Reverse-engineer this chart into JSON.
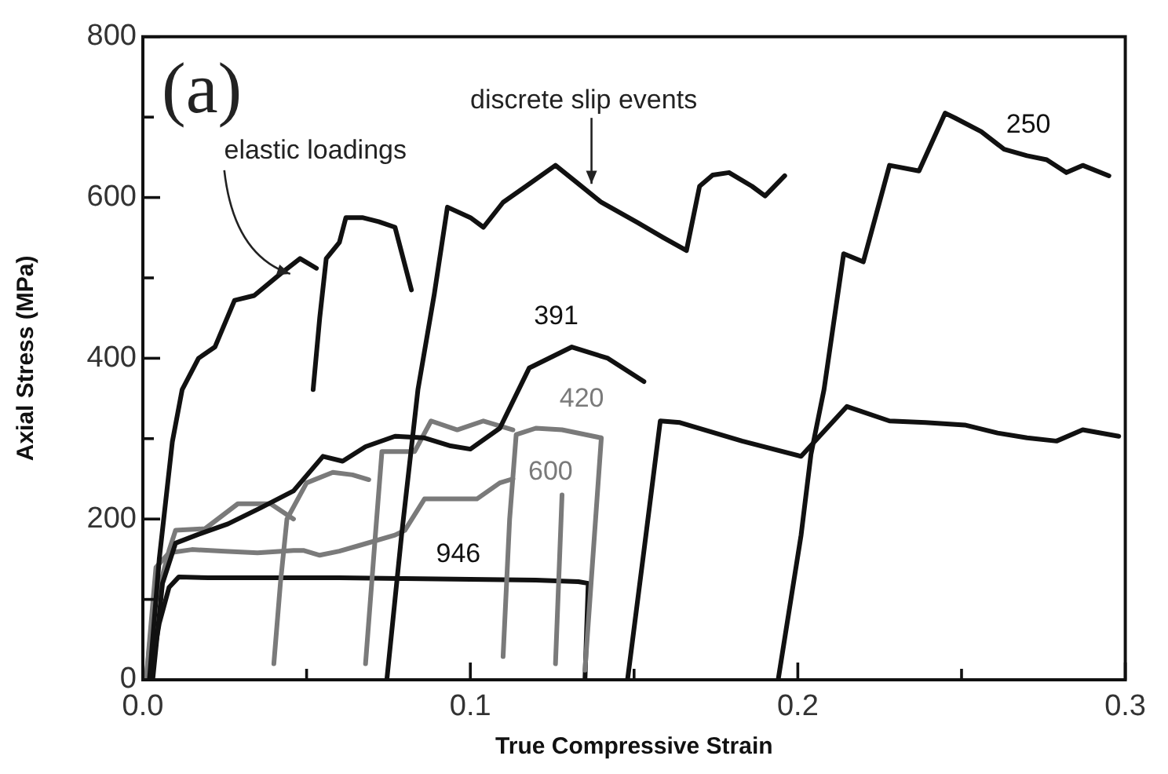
{
  "chart_data": {
    "type": "line",
    "xlabel": "True Compressive Strain",
    "ylabel": "Axial Stress (MPa)",
    "xlim": [
      0,
      0.3
    ],
    "xticks": [
      {
        "value": 0,
        "label": "0.0"
      },
      {
        "value": 0.05,
        "label": null
      },
      0.1,
      {
        "value": 0.15,
        "label": null
      },
      0.2,
      {
        "value": 0.25,
        "label": null
      },
      0.3
    ],
    "ylim": [
      0,
      800
    ],
    "yticks": [
      0,
      {
        "value": 100,
        "label": null
      },
      200,
      {
        "value": 300,
        "label": null
      },
      400,
      {
        "value": 500,
        "label": null
      },
      600,
      {
        "value": 700,
        "label": null
      },
      800
    ],
    "series": [
      {
        "name": "250",
        "color": "#111111",
        "x": [
          0.002,
          0.005,
          0.009,
          0.012,
          0.017,
          0.022,
          0.028,
          0.034,
          0.042,
          0.048,
          0.053,
          null,
          0.052,
          0.054,
          0.056,
          0.06,
          0.062,
          0.067,
          0.072,
          0.077,
          0.082,
          null,
          0.0745,
          0.079,
          0.084,
          0.089,
          0.093,
          0.1,
          0.104,
          0.11,
          0.117,
          0.126,
          0.133,
          0.14,
          0.151,
          0.159,
          0.166,
          0.17,
          0.174,
          0.179,
          0.186,
          0.19,
          0.196,
          null,
          0.194,
          0.201,
          0.204,
          0.208,
          0.214,
          0.22,
          0.228,
          0.237,
          0.245,
          0.248,
          0.256,
          0.263,
          0.27,
          0.276,
          0.282,
          0.287,
          0.295
        ],
        "values": [
          0,
          150,
          296,
          361,
          400,
          414,
          472,
          478,
          505,
          524,
          512,
          null,
          361,
          450,
          524,
          544,
          575,
          575,
          570,
          563,
          485,
          null,
          0,
          180,
          361,
          480,
          588,
          575,
          563,
          594,
          614,
          640,
          617,
          594,
          569,
          550,
          534,
          614,
          628,
          631,
          614,
          602,
          627,
          null,
          0,
          180,
          280,
          361,
          530,
          520,
          640,
          633,
          705,
          699,
          682,
          660,
          652,
          647,
          631,
          640,
          627
        ]
      },
      {
        "name": "391",
        "color": "#111111",
        "x": [
          0.003,
          0.006,
          0.01,
          0.017,
          0.026,
          0.036,
          0.046,
          0.055,
          0.061,
          0.068,
          0.077,
          0.086,
          0.094,
          0.1,
          0.109,
          0.118,
          0.131,
          0.142,
          0.153,
          null,
          0.148,
          0.153,
          0.158,
          0.164,
          0.183,
          0.201,
          0.215,
          0.228,
          0.239,
          0.251,
          0.261,
          0.27,
          0.279,
          0.287,
          0.298
        ],
        "values": [
          0,
          120,
          170,
          181,
          194,
          214,
          235,
          278,
          272,
          290,
          303,
          301,
          291,
          287,
          313,
          388,
          414,
          400,
          371,
          null,
          0,
          160,
          322,
          320,
          297,
          278,
          340,
          322,
          320,
          317,
          307,
          301,
          297,
          311,
          303
        ]
      },
      {
        "name": "420",
        "color": "#7a7a7a",
        "x": [
          0.001,
          0.003,
          0.008,
          0.01,
          0.019,
          0.029,
          0.039,
          0.046,
          null,
          0.04,
          0.042,
          0.044,
          0.05,
          0.058,
          0.064,
          0.069,
          null,
          0.068,
          0.071,
          0.073,
          0.083,
          0.088,
          0.096,
          0.104,
          0.113,
          null,
          0.11,
          0.112,
          0.114,
          0.12,
          0.128,
          0.14,
          0.135
        ],
        "values": [
          0,
          83,
          161,
          186,
          188,
          219,
          219,
          200,
          null,
          20,
          120,
          200,
          245,
          258,
          255,
          249,
          null,
          20,
          180,
          284,
          284,
          322,
          311,
          322,
          311,
          null,
          29,
          200,
          305,
          313,
          311,
          301,
          12
        ]
      },
      {
        "name": "600",
        "color": "#7a7a7a",
        "x": [
          0.001,
          0.004,
          0.008,
          0.015,
          0.025,
          0.035,
          0.046,
          0.049,
          0.054,
          0.06,
          0.066,
          0.077,
          0.08,
          0.086,
          0.091,
          0.102,
          0.109,
          0.113,
          null,
          0.126,
          0.128
        ],
        "values": [
          0,
          140,
          158,
          162,
          160,
          158,
          161,
          161,
          155,
          160,
          167,
          180,
          186,
          225,
          225,
          225,
          245,
          250,
          null,
          20,
          230
        ]
      },
      {
        "name": "946",
        "color": "#111111",
        "x": [
          0.002,
          0.005,
          0.008,
          0.011,
          0.02,
          0.04,
          0.06,
          0.08,
          0.1,
          0.12,
          0.133,
          0.136,
          0.135
        ],
        "values": [
          0,
          70,
          115,
          128,
          127,
          127,
          127,
          126,
          125,
          124,
          122,
          120,
          0
        ]
      }
    ],
    "annotations": [
      "(a)",
      {
        "text": "elastic loadings",
        "x": 0.045,
        "y": 505
      },
      {
        "text": "discrete slip events",
        "x": 0.137,
        "y": 617
      }
    ]
  }
}
